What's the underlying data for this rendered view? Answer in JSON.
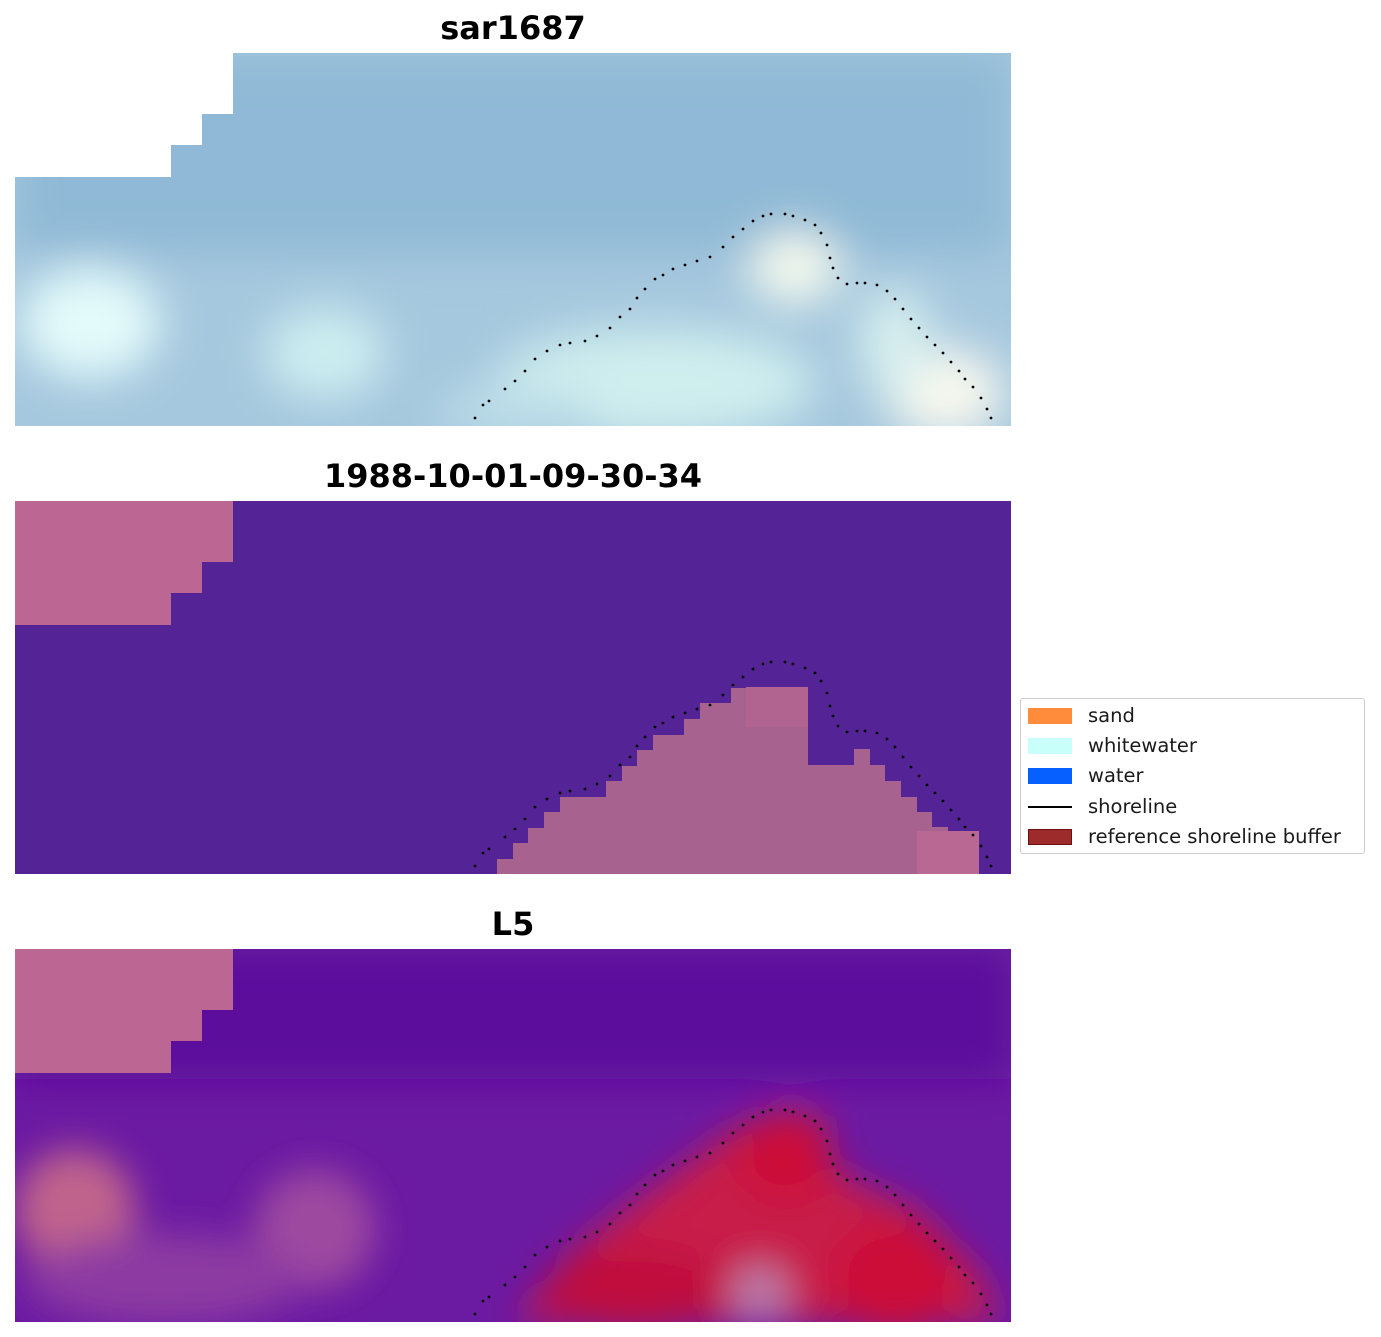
{
  "panels": [
    {
      "title": "sar1687",
      "type": "rgb"
    },
    {
      "title": "1988-10-01-09-30-34",
      "type": "classification"
    },
    {
      "title": "L5",
      "type": "index"
    }
  ],
  "legend": {
    "position": "center-right",
    "items": [
      {
        "label": "sand",
        "color": "#ff8c3b",
        "kind": "patch"
      },
      {
        "label": "whitewater",
        "color": "#c8fffa",
        "kind": "patch"
      },
      {
        "label": "water",
        "color": "#0560ff",
        "kind": "patch"
      },
      {
        "label": "shoreline",
        "color": "#000000",
        "kind": "line"
      },
      {
        "label": "reference shoreline buffer",
        "color": "#9e2b2b",
        "kind": "patch"
      }
    ]
  },
  "colors": {
    "mask": "#bb6693",
    "water_class": "#542396",
    "sand_class": "#a8628f",
    "rgb_sky": "#93bcd8",
    "index_low": "#5f0e9e",
    "index_high": "#c80e3c"
  }
}
